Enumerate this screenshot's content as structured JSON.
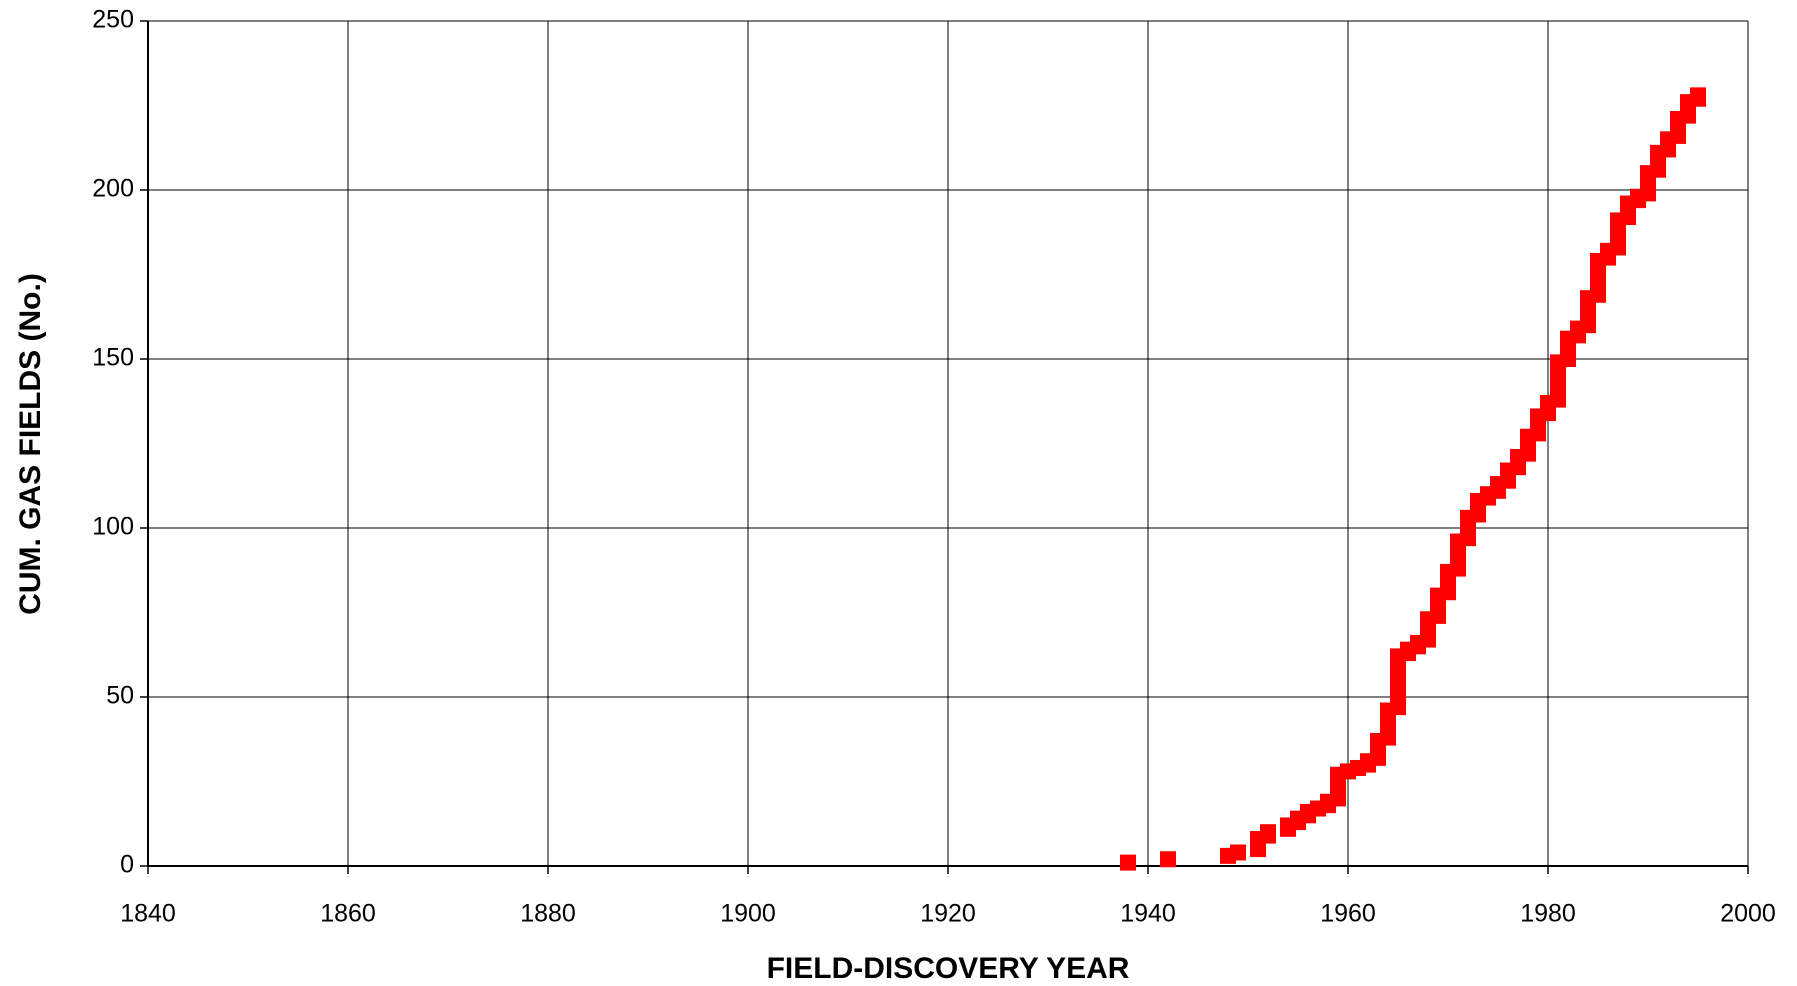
{
  "chart_data": {
    "type": "scatter",
    "xlabel": "FIELD-DISCOVERY YEAR",
    "ylabel": "CUM. GAS FIELDS (No.)",
    "color": "#ff0000",
    "marker": "square",
    "grid": true,
    "xlim": [
      1840,
      2000
    ],
    "xticks": [
      1840,
      1860,
      1880,
      1900,
      1920,
      1940,
      1960,
      1980,
      2000
    ],
    "ylim": [
      0,
      250
    ],
    "yticks": [
      0,
      50,
      100,
      150,
      200,
      250
    ],
    "x": [
      1938,
      1942,
      1948,
      1949,
      1951,
      1951,
      1951,
      1951,
      1952,
      1952,
      1954,
      1954,
      1955,
      1955,
      1956,
      1956,
      1957,
      1958,
      1958,
      1959,
      1959,
      1959,
      1959,
      1959,
      1959,
      1959,
      1959,
      1960,
      1961,
      1962,
      1962,
      1963,
      1963,
      1963,
      1963,
      1963,
      1963,
      1964,
      1964,
      1964,
      1964,
      1964,
      1964,
      1964,
      1964,
      1964,
      1965,
      1965,
      1965,
      1965,
      1965,
      1965,
      1965,
      1965,
      1965,
      1965,
      1965,
      1965,
      1965,
      1965,
      1965,
      1965,
      1966,
      1966,
      1967,
      1967,
      1968,
      1968,
      1968,
      1968,
      1968,
      1968,
      1968,
      1969,
      1969,
      1969,
      1969,
      1969,
      1969,
      1969,
      1970,
      1970,
      1970,
      1970,
      1970,
      1970,
      1970,
      1971,
      1971,
      1971,
      1971,
      1971,
      1971,
      1971,
      1971,
      1971,
      1972,
      1972,
      1972,
      1972,
      1972,
      1972,
      1972,
      1973,
      1973,
      1973,
      1973,
      1973,
      1974,
      1974,
      1975,
      1975,
      1975,
      1976,
      1976,
      1976,
      1976,
      1977,
      1977,
      1977,
      1977,
      1978,
      1978,
      1978,
      1978,
      1978,
      1978,
      1979,
      1979,
      1979,
      1979,
      1979,
      1979,
      1980,
      1980,
      1980,
      1980,
      1981,
      1981,
      1981,
      1981,
      1981,
      1981,
      1981,
      1981,
      1981,
      1981,
      1981,
      1981,
      1982,
      1982,
      1982,
      1982,
      1982,
      1982,
      1982,
      1983,
      1983,
      1983,
      1984,
      1984,
      1984,
      1984,
      1984,
      1984,
      1984,
      1984,
      1984,
      1985,
      1985,
      1985,
      1985,
      1985,
      1985,
      1985,
      1985,
      1985,
      1985,
      1985,
      1986,
      1986,
      1986,
      1987,
      1987,
      1987,
      1987,
      1987,
      1987,
      1987,
      1987,
      1987,
      1988,
      1988,
      1988,
      1988,
      1988,
      1989,
      1989,
      1990,
      1990,
      1990,
      1990,
      1990,
      1990,
      1990,
      1991,
      1991,
      1991,
      1991,
      1991,
      1991,
      1992,
      1992,
      1992,
      1992,
      1993,
      1993,
      1993,
      1993,
      1993,
      1993,
      1994,
      1994,
      1994,
      1994,
      1994,
      1995,
      1995
    ],
    "y": [
      1,
      2,
      3,
      4,
      5,
      6,
      7,
      8,
      9,
      10,
      11,
      12,
      13,
      14,
      15,
      16,
      17,
      18,
      19,
      20,
      21,
      22,
      23,
      24,
      25,
      26,
      27,
      28,
      29,
      30,
      31,
      32,
      33,
      34,
      35,
      36,
      37,
      38,
      39,
      40,
      41,
      42,
      43,
      44,
      45,
      46,
      47,
      48,
      49,
      50,
      51,
      52,
      53,
      54,
      55,
      56,
      57,
      58,
      59,
      60,
      61,
      62,
      63,
      64,
      65,
      66,
      67,
      68,
      69,
      70,
      71,
      72,
      73,
      74,
      75,
      76,
      77,
      78,
      79,
      80,
      81,
      82,
      83,
      84,
      85,
      86,
      87,
      88,
      89,
      90,
      91,
      92,
      93,
      94,
      95,
      96,
      97,
      98,
      99,
      100,
      101,
      102,
      103,
      104,
      105,
      106,
      107,
      108,
      109,
      110,
      111,
      112,
      113,
      114,
      115,
      116,
      117,
      118,
      119,
      120,
      121,
      122,
      123,
      124,
      125,
      126,
      127,
      128,
      129,
      130,
      131,
      132,
      133,
      134,
      135,
      136,
      137,
      138,
      139,
      140,
      141,
      142,
      143,
      144,
      145,
      146,
      147,
      148,
      149,
      150,
      151,
      152,
      153,
      154,
      155,
      156,
      157,
      158,
      159,
      160,
      161,
      162,
      163,
      164,
      165,
      166,
      167,
      168,
      169,
      170,
      171,
      172,
      173,
      174,
      175,
      176,
      177,
      178,
      179,
      180,
      181,
      182,
      183,
      184,
      185,
      186,
      187,
      188,
      189,
      190,
      191,
      192,
      193,
      194,
      195,
      196,
      197,
      198,
      199,
      200,
      201,
      202,
      203,
      204,
      205,
      206,
      207,
      208,
      209,
      210,
      211,
      212,
      213,
      214,
      215,
      216,
      217,
      218,
      219,
      220,
      221,
      222,
      223,
      224,
      225,
      226,
      227,
      228
    ]
  }
}
